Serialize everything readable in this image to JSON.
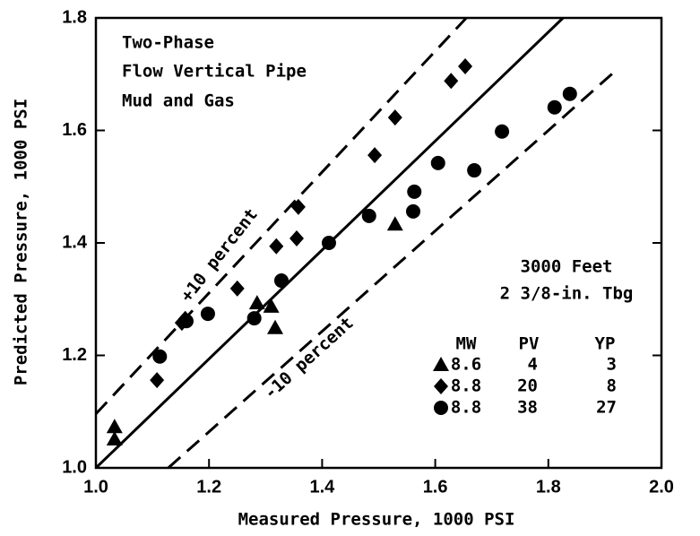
{
  "chart_data": {
    "type": "scatter",
    "xlabel": "Measured Pressure, 1000 PSI",
    "ylabel": "Predicted Pressure, 1000 PSI",
    "xlim": [
      1.0,
      2.0
    ],
    "ylim": [
      1.0,
      1.8
    ],
    "xticks": [
      {
        "value": 1.0,
        "label": "1.0"
      },
      1.2,
      1.4,
      1.6,
      1.8,
      {
        "value": 2.0,
        "label": "2.0"
      }
    ],
    "yticks": [
      {
        "value": 1.0,
        "label": "1.0"
      },
      1.2,
      1.4,
      1.6,
      1.8
    ],
    "annotations": [
      "Two-Phase",
      "Flow Vertical Pipe",
      "Mud and Gas",
      "3000 Feet",
      "2 3/8-in. Tbg",
      "+10 percent",
      "-10 percent"
    ],
    "legend_headers": [
      "MW",
      "PV",
      "YP"
    ],
    "lines": [
      {
        "style": "solid",
        "x": [
          1.0,
          1.826
        ],
        "y": [
          1.0,
          1.8
        ]
      },
      {
        "style": "dashed",
        "x": [
          1.0,
          1.655
        ],
        "y": [
          1.096,
          1.8
        ]
      },
      {
        "style": "dashed",
        "x": [
          1.128,
          1.921
        ],
        "y": [
          1.0,
          1.708
        ]
      }
    ],
    "series": [
      {
        "marker": "triangle",
        "color": "#000000",
        "mw": "8.6",
        "pv": 4,
        "yp": 3,
        "x": [
          1.033,
          1.033,
          1.285,
          1.31,
          1.317,
          1.529
        ],
        "values": [
          1.073,
          1.051,
          1.293,
          1.287,
          1.249,
          1.433
        ]
      },
      {
        "marker": "diamond",
        "color": "#000000",
        "mw": "8.8",
        "pv": 20,
        "yp": 8,
        "x": [
          1.108,
          1.152,
          1.158,
          1.25,
          1.319,
          1.355,
          1.358,
          1.493,
          1.529,
          1.628,
          1.653
        ],
        "values": [
          1.156,
          1.258,
          1.265,
          1.319,
          1.394,
          1.408,
          1.464,
          1.556,
          1.623,
          1.688,
          1.714
        ]
      },
      {
        "marker": "circle",
        "color": "#000000",
        "mw": "8.8",
        "pv": 38,
        "yp": 27,
        "x": [
          1.113,
          1.16,
          1.198,
          1.28,
          1.328,
          1.412,
          1.483,
          1.563,
          1.561,
          1.605,
          1.669,
          1.718,
          1.811,
          1.838
        ],
        "values": [
          1.198,
          1.261,
          1.274,
          1.266,
          1.333,
          1.4,
          1.448,
          1.491,
          1.456,
          1.542,
          1.529,
          1.598,
          1.641,
          1.665
        ]
      }
    ]
  }
}
